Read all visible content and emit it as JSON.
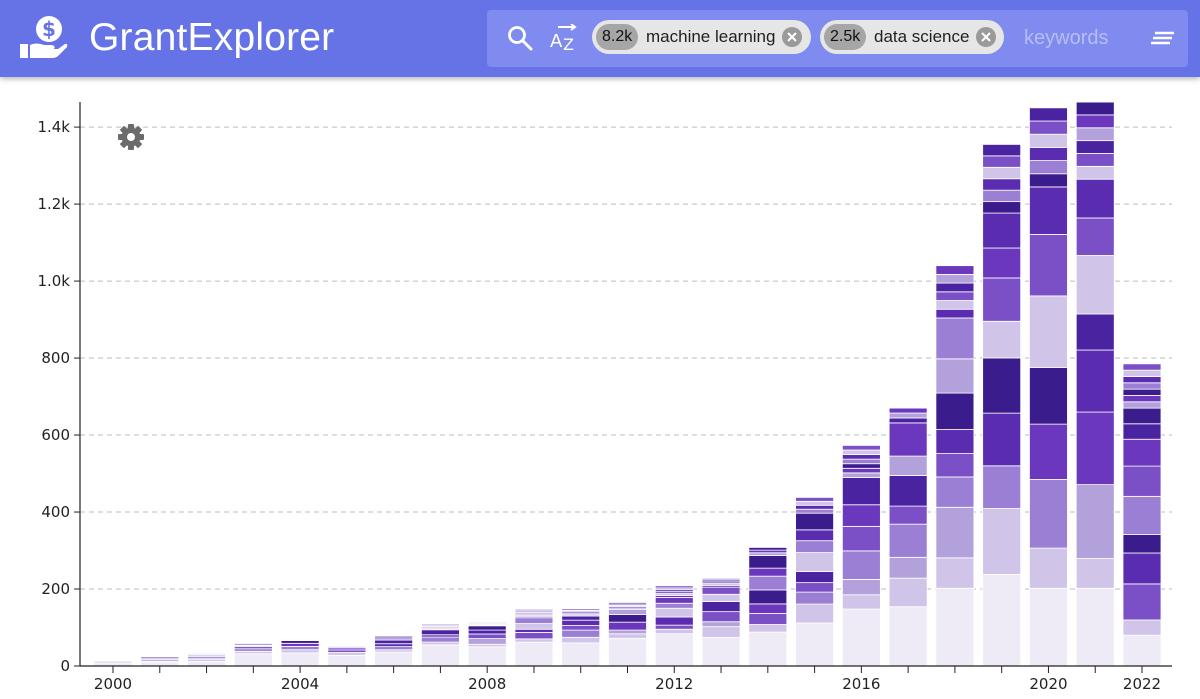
{
  "app": {
    "title": "GrantExplorer"
  },
  "search": {
    "placeholder": "keywords",
    "chips": [
      {
        "count": "8.2k",
        "label": "machine learning"
      },
      {
        "count": "2.5k",
        "label": "data science"
      }
    ]
  },
  "icons": {
    "logo": "hand-with-dollar-icon",
    "search": "search-icon",
    "sort": "sort-alpha-icon",
    "close": "close-circle-icon",
    "menu": "menu-lines-icon",
    "settings": "gear-icon"
  },
  "colors": {
    "header": "#6673e6",
    "search_bg": "#7f8bee",
    "palette": [
      "#eeeaf6",
      "#d0c4e8",
      "#b3a1dc",
      "#9b7fd4",
      "#7b50c6",
      "#6a37bd",
      "#5a2db0",
      "#4a23a0",
      "#3b1c8c"
    ]
  },
  "chart_data": {
    "type": "bar",
    "stacked": true,
    "x": [
      2000,
      2001,
      2002,
      2003,
      2004,
      2005,
      2006,
      2007,
      2008,
      2009,
      2010,
      2011,
      2012,
      2013,
      2014,
      2015,
      2016,
      2017,
      2018,
      2019,
      2020,
      2021,
      2022
    ],
    "totals": [
      18,
      30,
      38,
      65,
      72,
      58,
      90,
      110,
      114,
      147,
      148,
      165,
      208,
      228,
      308,
      438,
      573,
      670,
      1040,
      1355,
      1450,
      1465,
      785
    ],
    "base_segment": [
      8,
      10,
      12,
      32,
      34,
      28,
      36,
      55,
      50,
      62,
      60,
      72,
      84,
      74,
      88,
      112,
      148,
      154,
      202,
      238,
      202,
      202,
      80
    ],
    "ylim": [
      0,
      1460
    ],
    "y_ticks": [
      {
        "value": 0,
        "label": "0"
      },
      {
        "value": 200,
        "label": "200"
      },
      {
        "value": 400,
        "label": "400"
      },
      {
        "value": 600,
        "label": "600"
      },
      {
        "value": 800,
        "label": "800"
      },
      {
        "value": 1000,
        "label": "1.0k"
      },
      {
        "value": 1200,
        "label": "1.2k"
      },
      {
        "value": 1400,
        "label": "1.4k"
      }
    ],
    "x_tick_labels": [
      "2000",
      "2004",
      "2008",
      "2012",
      "2016",
      "2020",
      "2022"
    ],
    "grid": true,
    "xlabel": "",
    "ylabel": ""
  }
}
